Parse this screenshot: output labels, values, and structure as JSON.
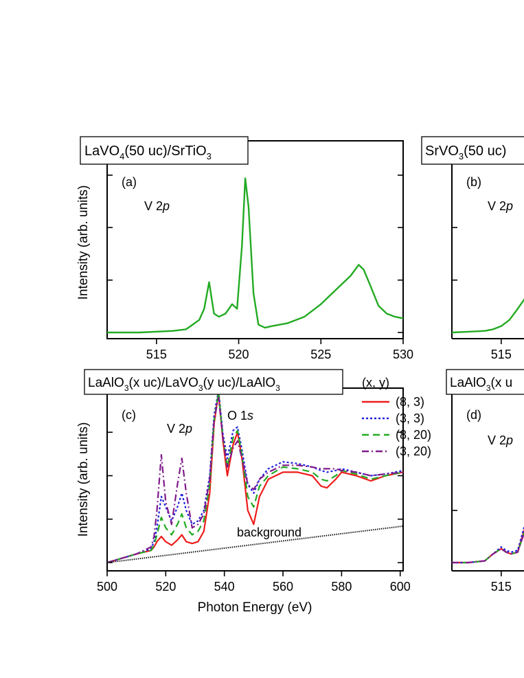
{
  "chart_data": [
    {
      "id": "a",
      "type": "line",
      "header": "LaVO₄(50 uc)/SrTiO₃",
      "header_parts": [
        "LaVO",
        "4",
        "(50 uc)/SrTiO",
        "3"
      ],
      "panel_label": "(a)",
      "annotation": {
        "pre": "V 2",
        "italic": "p"
      },
      "ylabel": "Intensity (arb. units)",
      "xlabel": "",
      "xlim": [
        512,
        530
      ],
      "xticks": [
        515,
        520,
        525,
        530
      ],
      "series": [
        {
          "color": "#22aa22",
          "x": [
            512,
            514,
            516,
            516.8,
            517.2,
            517.6,
            517.9,
            518.2,
            518.5,
            518.8,
            519.2,
            519.6,
            519.9,
            520.2,
            520.4,
            520.6,
            520.9,
            521.2,
            521.6,
            522,
            522.5,
            523,
            524,
            525,
            526,
            526.8,
            527.3,
            527.6,
            528,
            528.5,
            529,
            529.5,
            530
          ],
          "y": [
            0,
            0,
            0.01,
            0.02,
            0.05,
            0.08,
            0.15,
            0.32,
            0.12,
            0.1,
            0.12,
            0.18,
            0.15,
            0.55,
            0.98,
            0.8,
            0.25,
            0.05,
            0.03,
            0.04,
            0.05,
            0.06,
            0.1,
            0.18,
            0.28,
            0.36,
            0.43,
            0.4,
            0.3,
            0.17,
            0.12,
            0.1,
            0.09
          ]
        }
      ]
    },
    {
      "id": "b",
      "type": "line",
      "header": "SrVO₃(50 uc)",
      "header_parts": [
        "SrVO",
        "3",
        "(50 uc)",
        ""
      ],
      "panel_label": "(b)",
      "annotation": {
        "pre": "V 2",
        "italic": "p"
      },
      "ylabel": "",
      "xlabel": "",
      "xlim": [
        512,
        530
      ],
      "xticks": [
        515
      ],
      "series": [
        {
          "color": "#22aa22",
          "x": [
            512,
            513,
            514,
            514.5,
            515,
            515.5,
            516,
            517
          ],
          "y": [
            0,
            0.005,
            0.01,
            0.02,
            0.04,
            0.08,
            0.15,
            0.3
          ]
        }
      ]
    },
    {
      "id": "c",
      "type": "line",
      "header": "LaAlO₃(x uc)/LaVO₃(y uc)/LaAlO₃",
      "header_parts": [
        "LaAlO",
        "3",
        "(x uc)/LaVO",
        "3",
        "(y uc)/LaAlO",
        "3"
      ],
      "panel_label": "(c)",
      "annotations": [
        {
          "pre": "V 2",
          "italic": "p"
        },
        {
          "pre": "O 1",
          "italic": "s"
        }
      ],
      "background_label": "background",
      "ylabel": "Intensity (arb. units)",
      "xlabel": "Photon Energy (eV)",
      "xlim": [
        500,
        601
      ],
      "xticks": [
        500,
        520,
        540,
        560,
        580,
        600
      ],
      "legend": {
        "title": "(x, y)",
        "position": "right"
      },
      "series": [
        {
          "name": "(8, 3)",
          "color": "#ee1c1c",
          "dash": "",
          "x": [
            500,
            510,
            515,
            516,
            517,
            518.5,
            520,
            522,
            524,
            525.5,
            527,
            529,
            531,
            533,
            535,
            536.5,
            538,
            539.5,
            541,
            543,
            544.5,
            546,
            548,
            550,
            552,
            555,
            560,
            565,
            570,
            573,
            575,
            578,
            580,
            585,
            590,
            595,
            601
          ],
          "y": [
            0,
            0.05,
            0.07,
            0.09,
            0.12,
            0.15,
            0.12,
            0.1,
            0.13,
            0.16,
            0.12,
            0.11,
            0.12,
            0.18,
            0.4,
            0.8,
            0.98,
            0.7,
            0.5,
            0.68,
            0.75,
            0.6,
            0.3,
            0.22,
            0.38,
            0.48,
            0.52,
            0.52,
            0.5,
            0.44,
            0.43,
            0.48,
            0.52,
            0.5,
            0.47,
            0.5,
            0.52
          ]
        },
        {
          "name": "(3, 3)",
          "color": "#1f1fdd",
          "dash": "3,3",
          "x": [
            500,
            510,
            515,
            516,
            517,
            518.5,
            520,
            522,
            524,
            525.5,
            527,
            529,
            531,
            533,
            535,
            536.5,
            538,
            539.5,
            541,
            543,
            544.5,
            546,
            548,
            550,
            552,
            555,
            560,
            565,
            570,
            573,
            575,
            578,
            580,
            585,
            590,
            595,
            601
          ],
          "y": [
            0,
            0.05,
            0.08,
            0.12,
            0.2,
            0.38,
            0.32,
            0.24,
            0.32,
            0.4,
            0.3,
            0.22,
            0.24,
            0.3,
            0.5,
            0.85,
            0.99,
            0.74,
            0.6,
            0.76,
            0.78,
            0.65,
            0.45,
            0.4,
            0.48,
            0.54,
            0.58,
            0.57,
            0.55,
            0.53,
            0.52,
            0.53,
            0.54,
            0.52,
            0.5,
            0.51,
            0.53
          ]
        },
        {
          "name": "(8, 20)",
          "color": "#22aa22",
          "dash": "10,6",
          "x": [
            500,
            510,
            515,
            516,
            517,
            518.5,
            520,
            522,
            524,
            525.5,
            527,
            529,
            531,
            533,
            535,
            536.5,
            538,
            539.5,
            541,
            543,
            544.5,
            546,
            548,
            550,
            552,
            555,
            560,
            565,
            570,
            573,
            575,
            578,
            580,
            585,
            590,
            595,
            601
          ],
          "y": [
            0,
            0.05,
            0.07,
            0.1,
            0.16,
            0.26,
            0.2,
            0.16,
            0.22,
            0.28,
            0.2,
            0.16,
            0.18,
            0.24,
            0.45,
            0.82,
            0.98,
            0.72,
            0.55,
            0.72,
            0.76,
            0.62,
            0.38,
            0.32,
            0.44,
            0.5,
            0.55,
            0.54,
            0.52,
            0.48,
            0.47,
            0.5,
            0.53,
            0.51,
            0.48,
            0.5,
            0.52
          ]
        },
        {
          "name": "(3, 20)",
          "color": "#7f1a8a",
          "dash": "10,4,2,4",
          "x": [
            500,
            510,
            515,
            516,
            517,
            518.5,
            520,
            522,
            524,
            525.5,
            527,
            529,
            531,
            533,
            535,
            536.5,
            538,
            539.5,
            541,
            543,
            544.5,
            546,
            548,
            550,
            552,
            555,
            560,
            565,
            570,
            573,
            575,
            578,
            580,
            585,
            590,
            595,
            601
          ],
          "y": [
            0,
            0.05,
            0.09,
            0.15,
            0.3,
            0.62,
            0.35,
            0.22,
            0.45,
            0.6,
            0.4,
            0.2,
            0.22,
            0.28,
            0.48,
            0.82,
            0.95,
            0.72,
            0.55,
            0.66,
            0.7,
            0.6,
            0.45,
            0.42,
            0.48,
            0.52,
            0.56,
            0.56,
            0.55,
            0.54,
            0.54,
            0.54,
            0.53,
            0.52,
            0.5,
            0.51,
            0.52
          ]
        },
        {
          "name": "background",
          "color": "#111111",
          "dash": "1.5,1.5",
          "x": [
            500,
            601
          ],
          "y": [
            0,
            0.21
          ]
        }
      ]
    },
    {
      "id": "d",
      "type": "line",
      "header": "LaAlO₃(x u",
      "header_parts": [
        "LaAlO",
        "3",
        "(x u",
        ""
      ],
      "panel_label": "(d)",
      "annotation": {
        "pre": "V 2",
        "italic": "p"
      },
      "ylabel": "",
      "xlabel": "",
      "xlim": [
        512,
        530
      ],
      "xticks": [
        515
      ],
      "series": [
        {
          "color": "#ee1c1c",
          "dash": "",
          "x": [
            512,
            513,
            514,
            514.5,
            515,
            515.3,
            515.6,
            516,
            516.5,
            517,
            517.5,
            518
          ],
          "y": [
            0,
            0,
            0.01,
            0.05,
            0.08,
            0.06,
            0.05,
            0.06,
            0.22,
            0.5,
            0.42,
            0.45
          ]
        },
        {
          "color": "#1f1fdd",
          "dash": "3,3",
          "x": [
            512,
            513,
            514,
            514.5,
            515,
            515.3,
            515.6,
            516,
            516.5,
            517,
            517.5,
            518
          ],
          "y": [
            0,
            0,
            0.01,
            0.05,
            0.09,
            0.07,
            0.06,
            0.07,
            0.24,
            0.52,
            0.44,
            0.47
          ]
        },
        {
          "color": "#22aa22",
          "dash": "10,6",
          "x": [
            512,
            513,
            514,
            514.5,
            515,
            515.3,
            515.6,
            516,
            516.5,
            517,
            517.5,
            518
          ],
          "y": [
            0,
            0,
            0.01,
            0.05,
            0.08,
            0.06,
            0.05,
            0.06,
            0.2,
            0.48,
            0.4,
            0.43
          ]
        },
        {
          "color": "#7f1a8a",
          "dash": "10,4,2,4",
          "x": [
            512,
            513,
            514,
            514.5,
            515,
            515.3,
            515.6,
            516,
            516.5,
            517,
            517.5,
            518
          ],
          "y": [
            0,
            0,
            0.01,
            0.05,
            0.08,
            0.06,
            0.05,
            0.06,
            0.2,
            0.47,
            0.4,
            0.43
          ]
        }
      ]
    }
  ]
}
